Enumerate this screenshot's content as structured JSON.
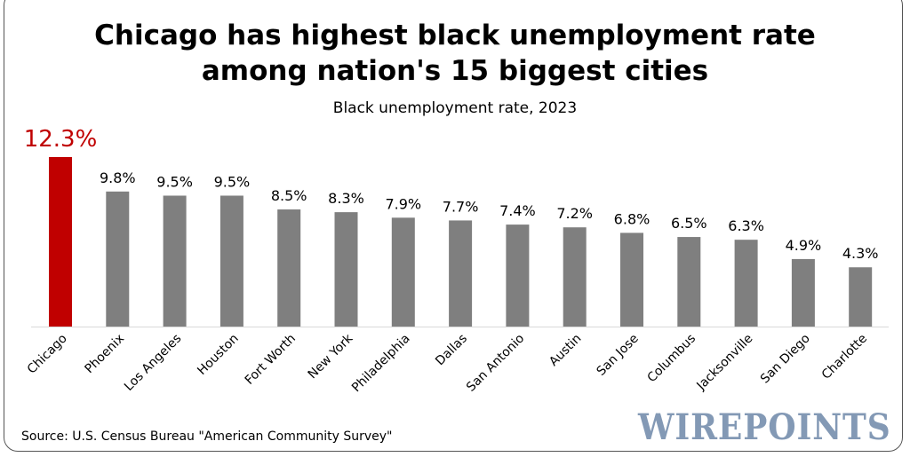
{
  "chart_data": {
    "type": "bar",
    "title": "Chicago has highest black unemployment rate among nation's 15 biggest cities",
    "title_lines": [
      "Chicago has highest black unemployment rate",
      "among nation's 15 biggest cities"
    ],
    "subtitle": "Black unemployment rate, 2023",
    "categories": [
      "Chicago",
      "Phoenix",
      "Los Angeles",
      "Houston",
      "Fort Worth",
      "New York",
      "Philadelphia",
      "Dallas",
      "San Antonio",
      "Austin",
      "San Jose",
      "Columbus",
      "Jacksonville",
      "San Diego",
      "Charlotte"
    ],
    "values": [
      12.3,
      9.8,
      9.5,
      9.5,
      8.5,
      8.3,
      7.9,
      7.7,
      7.4,
      7.2,
      6.8,
      6.5,
      6.3,
      4.9,
      4.3
    ],
    "value_labels": [
      "12.3%",
      "9.8%",
      "9.5%",
      "9.5%",
      "8.5%",
      "8.3%",
      "7.9%",
      "7.7%",
      "7.4%",
      "7.2%",
      "6.8%",
      "6.5%",
      "6.3%",
      "4.9%",
      "4.3%"
    ],
    "ylim": [
      0,
      12.3
    ],
    "xlabel": "",
    "ylabel": "",
    "grid": false,
    "colors": {
      "highlight": "#c00000",
      "default": "#7f7f7f"
    }
  },
  "source": "Source: U.S. Census Bureau \"American Community Survey\"",
  "logo": "WIREPOINTS"
}
